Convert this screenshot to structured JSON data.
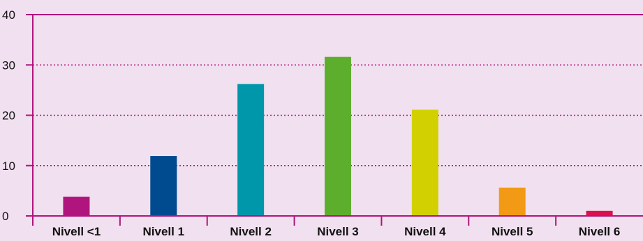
{
  "chart_data": {
    "type": "bar",
    "categories": [
      "Nivell <1",
      "Nivell 1",
      "Nivell 2",
      "Nivell 3",
      "Nivell 4",
      "Nivell 5",
      "Nivell 6"
    ],
    "values": [
      3.8,
      11.9,
      26.2,
      31.6,
      21.1,
      5.6,
      1.0
    ],
    "colors": [
      "#b0157d",
      "#004a8f",
      "#0097ab",
      "#5eae2e",
      "#d2d000",
      "#f29a16",
      "#d9104f"
    ],
    "ylim": [
      0,
      40
    ],
    "yticks": [
      0,
      10,
      20,
      30,
      40
    ],
    "grid": true,
    "title": "",
    "xlabel": "",
    "ylabel": "",
    "axis_color": "#b0157d",
    "background": "#f1e0ef"
  }
}
